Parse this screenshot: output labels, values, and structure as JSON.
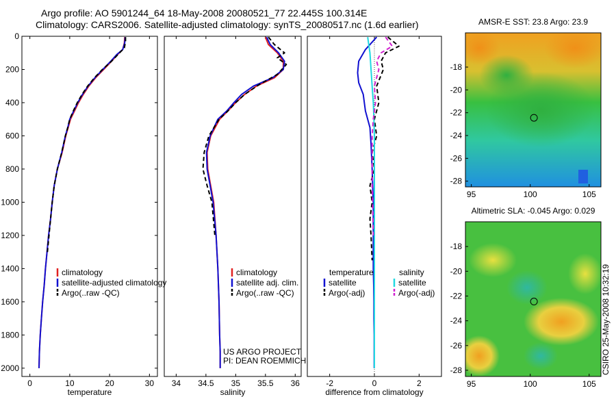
{
  "header": {
    "line1": "Argo profile: AO 5901244_64 18-May-2008 20080521_77 22.445S 100.314E",
    "line2": "Climatology: CARS2006. Satellite-adjusted climatology: synTS_20080517.nc (1.6d earlier)"
  },
  "credit": "CSIRO 25-May-2008 10:32:19",
  "colors": {
    "climatology": "#e02020",
    "satellite": "#1010d0",
    "argo": "#000000",
    "sal_satellite": "#20d8e0",
    "sal_argo": "#d020d0"
  },
  "chart_data": [
    {
      "type": "line",
      "xlabel": "temperature",
      "ylabel": "",
      "xlim": [
        -2,
        32
      ],
      "ylim": [
        2050,
        0
      ],
      "xticks": [
        0,
        10,
        20,
        30
      ],
      "yticks": [
        0,
        200,
        400,
        600,
        800,
        1000,
        1200,
        1400,
        1600,
        1800,
        2000
      ],
      "legend": {
        "placement": "lower-middle",
        "entries": [
          {
            "label": "climatology",
            "color": "#e02020",
            "dash": false
          },
          {
            "label": "satellite-adjusted climatology",
            "color": "#1010d0",
            "dash": false
          },
          {
            "label": "Argo(..raw -QC)",
            "color": "#000000",
            "dash": true
          }
        ]
      },
      "series": [
        {
          "name": "climatology",
          "color": "#e02020",
          "dash": false,
          "x": [
            23.8,
            23.7,
            23.3,
            22,
            20.5,
            18.5,
            16.5,
            14.8,
            13.4,
            12.2,
            11.2,
            10.2,
            9.6,
            9,
            8.1,
            6.9,
            6.1,
            5.6,
            5.2,
            4.7,
            4.3,
            3.9,
            3.6,
            3.2,
            2.9,
            2.6,
            2.4,
            2.3
          ],
          "y": [
            5,
            40,
            80,
            110,
            150,
            200,
            250,
            300,
            350,
            400,
            450,
            500,
            550,
            600,
            700,
            800,
            900,
            1000,
            1100,
            1200,
            1300,
            1400,
            1500,
            1600,
            1700,
            1800,
            1900,
            2000
          ]
        },
        {
          "name": "satellite-adjusted climatology",
          "color": "#1010d0",
          "dash": false,
          "x": [
            23.9,
            23.8,
            23.3,
            21.8,
            20.3,
            18.3,
            16.3,
            14.6,
            13.2,
            12,
            11,
            10,
            9.5,
            8.9,
            8,
            6.9,
            6.1,
            5.6,
            5.2,
            4.7,
            4.3,
            3.9,
            3.6,
            3.2,
            2.9,
            2.6,
            2.4,
            2.3
          ],
          "y": [
            5,
            40,
            80,
            110,
            150,
            200,
            250,
            300,
            350,
            400,
            450,
            500,
            550,
            600,
            700,
            800,
            900,
            1000,
            1100,
            1200,
            1300,
            1400,
            1500,
            1600,
            1700,
            1800,
            1900,
            2000
          ]
        },
        {
          "name": "Argo(..raw -QC)",
          "color": "#000000",
          "dash": true,
          "x": [
            24,
            24,
            23.7,
            22.5,
            20.5,
            18.2,
            16.2,
            14.5,
            13.1,
            11.9,
            10.9,
            10,
            9.5,
            8.9,
            8,
            6.9,
            6.1,
            5.6,
            5.2,
            4.8,
            4.4
          ],
          "y": [
            5,
            30,
            70,
            100,
            150,
            200,
            250,
            300,
            350,
            400,
            450,
            500,
            550,
            600,
            700,
            800,
            900,
            1000,
            1100,
            1200,
            1300
          ]
        }
      ]
    },
    {
      "type": "line",
      "xlabel": "salinity",
      "ylabel": "",
      "xlim": [
        33.8,
        36.1
      ],
      "ylim": [
        2050,
        0
      ],
      "xticks": [
        34,
        34.5,
        35,
        35.5,
        36
      ],
      "yticks": [],
      "legend": {
        "placement": "lower-right",
        "entries": [
          {
            "label": "climatology",
            "color": "#e02020",
            "dash": false
          },
          {
            "label": "satellite adj. clim.",
            "color": "#1010d0",
            "dash": false
          },
          {
            "label": "Argo(..raw -QC)",
            "color": "#000000",
            "dash": true
          }
        ]
      },
      "annotation": [
        "US ARGO PROJECT",
        "PI: DEAN ROEMMICH"
      ],
      "series": [
        {
          "name": "climatology",
          "color": "#e02020",
          "dash": false,
          "x": [
            35.5,
            35.55,
            35.7,
            35.8,
            35.8,
            35.65,
            35.35,
            35.15,
            35.0,
            34.87,
            34.73,
            34.58,
            34.52,
            34.53,
            34.58,
            34.63,
            34.67,
            34.7,
            34.72,
            34.73,
            34.74,
            34.74
          ],
          "y": [
            5,
            50,
            100,
            150,
            200,
            250,
            300,
            350,
            400,
            450,
            500,
            600,
            700,
            800,
            900,
            1000,
            1200,
            1400,
            1600,
            1800,
            1900,
            2000
          ]
        },
        {
          "name": "satellite adj. clim.",
          "color": "#1010d0",
          "dash": false,
          "x": [
            35.52,
            35.58,
            35.72,
            35.82,
            35.8,
            35.62,
            35.3,
            35.1,
            34.97,
            34.85,
            34.7,
            34.57,
            34.51,
            34.52,
            34.57,
            34.62,
            34.67,
            34.7,
            34.72,
            34.73,
            34.74,
            34.74
          ],
          "y": [
            5,
            50,
            100,
            150,
            200,
            250,
            300,
            350,
            400,
            450,
            500,
            600,
            700,
            800,
            900,
            1000,
            1200,
            1400,
            1600,
            1800,
            1900,
            2000
          ]
        },
        {
          "name": "Argo(..raw -QC)",
          "color": "#000000",
          "dash": true,
          "x": [
            35.55,
            35.65,
            35.82,
            35.7,
            35.85,
            35.7,
            35.4,
            35.15,
            35.0,
            34.87,
            34.72,
            34.55,
            34.47,
            34.45,
            34.52,
            34.6,
            34.65
          ],
          "y": [
            5,
            50,
            100,
            130,
            170,
            230,
            290,
            350,
            400,
            450,
            500,
            600,
            700,
            800,
            900,
            1000,
            1200
          ]
        }
      ]
    },
    {
      "type": "line",
      "xlabel": "difference from climatology",
      "ylabel": "",
      "xlim": [
        -3,
        3
      ],
      "ylim": [
        2050,
        0
      ],
      "xticks": [
        -2,
        0,
        2
      ],
      "yticks": [],
      "legend": {
        "placement": "lower",
        "groups": [
          {
            "heading": "temperature",
            "entries": [
              {
                "label": "satellite",
                "color": "#1010d0",
                "dash": false
              },
              {
                "label": "Argo(-adj)",
                "color": "#000000",
                "dash": true
              }
            ]
          },
          {
            "heading": "salinity",
            "entries": [
              {
                "label": "satellite",
                "color": "#20d8e0",
                "dash": false
              },
              {
                "label": "Argo(-adj)",
                "color": "#d020d0",
                "dash": true
              }
            ]
          }
        ]
      },
      "series": [
        {
          "name": "temperature satellite",
          "color": "#1010d0",
          "dash": false,
          "x": [
            0.1,
            -0.4,
            -0.7,
            -0.75,
            -0.7,
            -0.5,
            -0.4,
            -0.2,
            -0.15,
            -0.1,
            -0.05,
            -0.05,
            -0.05,
            -0.03,
            -0.02,
            -0.02,
            -0.01,
            -0.01
          ],
          "y": [
            5,
            80,
            150,
            220,
            280,
            350,
            450,
            550,
            650,
            800,
            1000,
            1200,
            1400,
            1500,
            1600,
            1700,
            1800,
            2000
          ]
        },
        {
          "name": "temperature Argo(-adj)",
          "color": "#000000",
          "dash": true,
          "x": [
            0.6,
            1.1,
            0.5,
            0.3,
            0.4,
            0.1,
            0.2,
            0.0,
            0.1,
            -0.1,
            0.0,
            -0.2,
            -0.1,
            -0.2,
            -0.15,
            -0.1
          ],
          "y": [
            5,
            60,
            100,
            150,
            200,
            300,
            400,
            500,
            600,
            700,
            800,
            900,
            1000,
            1100,
            1200,
            1350
          ]
        },
        {
          "name": "salinity satellite",
          "color": "#20d8e0",
          "dash": false,
          "x": [
            -0.3,
            -0.2,
            -0.15,
            -0.1,
            -0.05,
            -0.02,
            0.0,
            0.0,
            0.0,
            0.0,
            0.0,
            0.0,
            0.0
          ],
          "y": [
            5,
            100,
            200,
            300,
            400,
            500,
            600,
            800,
            1000,
            1200,
            1500,
            1800,
            2000
          ]
        },
        {
          "name": "salinity Argo(-adj)",
          "color": "#d020d0",
          "dash": true,
          "x": [
            0.5,
            0.8,
            0.3,
            0.1,
            0.2,
            0.0,
            0.05,
            -0.05,
            -0.1,
            -0.1,
            -0.1,
            -0.1,
            -0.08,
            -0.05
          ],
          "y": [
            5,
            60,
            100,
            150,
            200,
            300,
            400,
            500,
            600,
            700,
            800,
            900,
            1000,
            1200
          ]
        }
      ]
    },
    {
      "type": "heatmap",
      "title": "AMSR-E SST: 23.8 Argo: 23.9",
      "xlim": [
        94.5,
        106
      ],
      "ylim": [
        -28.5,
        -15
      ],
      "xticks": [
        95,
        100,
        105
      ],
      "yticks": [
        -18,
        -20,
        -22,
        -24,
        -26,
        -28
      ],
      "marker": {
        "x": 100.314,
        "y": -22.445
      }
    },
    {
      "type": "heatmap",
      "title": "Altimetric SLA: -0.045 Argo: 0.029",
      "xlim": [
        94.5,
        106
      ],
      "ylim": [
        -28.5,
        -16
      ],
      "xticks": [
        95,
        100,
        105
      ],
      "yticks": [
        -18,
        -20,
        -22,
        -24,
        -26,
        -28
      ],
      "marker": {
        "x": 100.314,
        "y": -22.445
      }
    }
  ]
}
